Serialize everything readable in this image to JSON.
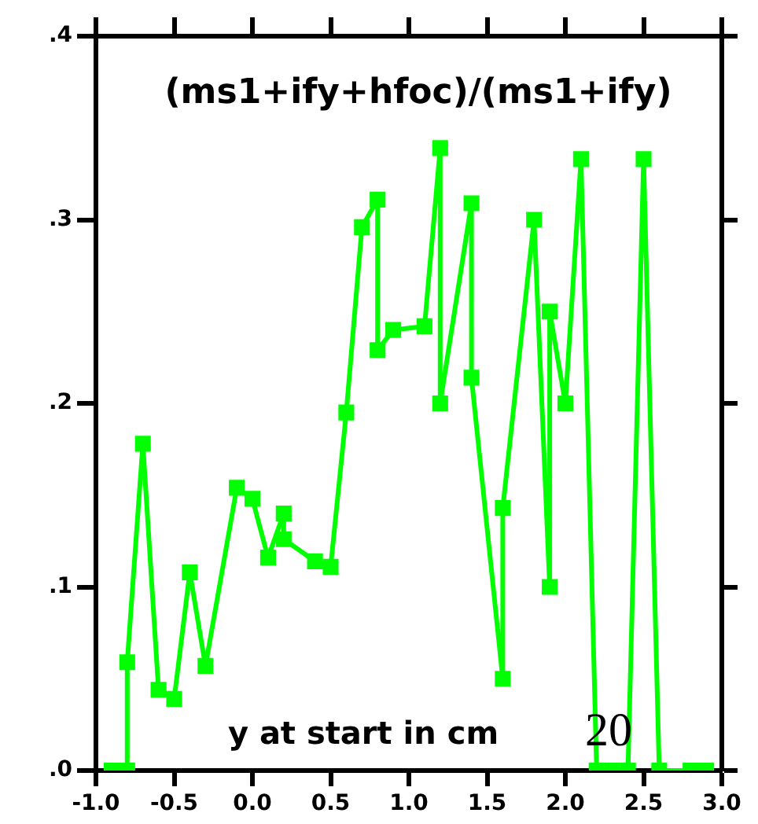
{
  "chart_data": {
    "type": "line",
    "title": "(ms1+ify+hfoc)/(ms1+ify)",
    "xlabel": "y at start in cm",
    "annotations": [
      "20"
    ],
    "series": [
      {
        "color": "#00ff00",
        "x": [
          -0.9,
          -0.8,
          -0.8,
          -0.7,
          -0.6,
          -0.5,
          -0.4,
          -0.3,
          -0.1,
          0,
          0.1,
          0.2,
          0.2,
          0.4,
          0.5,
          0.6,
          0.7,
          0.8,
          0.8,
          0.9,
          1.1,
          1.2,
          1.2,
          1.4,
          1.4,
          1.6,
          1.6,
          1.8,
          1.9,
          1.9,
          2.0,
          2.1,
          2.2,
          2.3,
          2.4,
          2.5,
          2.6,
          2.8,
          2.9
        ],
        "values": [
          0,
          0,
          0.059,
          0.178,
          0.044,
          0.039,
          0.108,
          0.057,
          0.154,
          0.148,
          0.116,
          0.14,
          0.126,
          0.114,
          0.111,
          0.195,
          0.296,
          0.311,
          0.229,
          0.24,
          0.242,
          0.339,
          0.2,
          0.309,
          0.214,
          0.05,
          0.143,
          0.3,
          0.1,
          0.25,
          0.2,
          0.333,
          0,
          0,
          0,
          0.333,
          0,
          0,
          0
        ]
      }
    ],
    "xlim": [
      -1,
      3
    ],
    "xticks": [
      {
        "value": -1,
        "label": "-1.0"
      },
      {
        "value": -0.5,
        "label": "-0.5"
      },
      {
        "value": 0,
        "label": "0.0"
      },
      {
        "value": 0.5,
        "label": "0.5"
      },
      {
        "value": 1,
        "label": "1.0"
      },
      {
        "value": 1.5,
        "label": "1.5"
      },
      {
        "value": 2,
        "label": "2.0"
      },
      {
        "value": 2.5,
        "label": "2.5"
      },
      {
        "value": 3,
        "label": "3.0"
      }
    ],
    "ylim": [
      0,
      0.4
    ],
    "yticks": [
      {
        "value": 0,
        "label": ".0"
      },
      {
        "value": 0.1,
        "label": ".1"
      },
      {
        "value": 0.2,
        "label": ".2"
      },
      {
        "value": 0.3,
        "label": ".3"
      },
      {
        "value": 0.4,
        "label": ".4"
      }
    ],
    "grid": false,
    "legend": false,
    "marker": "square",
    "line_style": "solid"
  }
}
